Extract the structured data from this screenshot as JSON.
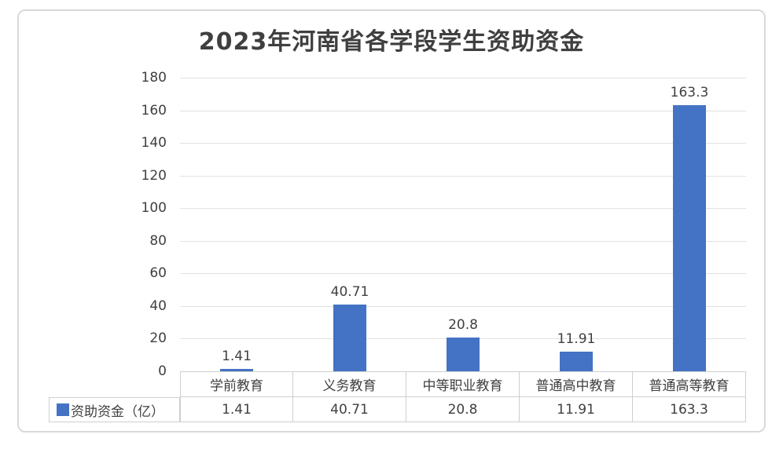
{
  "chart_data": {
    "type": "bar",
    "title": "2023年河南省各学段学生资助资金",
    "categories": [
      "学前教育",
      "义务教育",
      "中等职业教育",
      "普通高中教育",
      "普通高等教育"
    ],
    "series": [
      {
        "name": "资助资金（亿）",
        "values": [
          1.41,
          40.71,
          20.8,
          11.91,
          163.3
        ]
      }
    ],
    "value_labels": [
      "1.41",
      "40.71",
      "20.8",
      "11.91",
      "163.3"
    ],
    "xlabel": "",
    "ylabel": "",
    "ylim": [
      0,
      180
    ],
    "yticks": [
      0,
      20,
      40,
      60,
      80,
      100,
      120,
      140,
      160,
      180
    ],
    "grid": true,
    "legend_position": "data-table-left",
    "data_table_shown": true
  },
  "colors": {
    "bar": "#4472C4",
    "gridline": "#E2E2E2",
    "table_border": "#CFCFCF",
    "text": "#404040",
    "frame_border": "#D9D9D9",
    "background": "#FFFFFF"
  }
}
